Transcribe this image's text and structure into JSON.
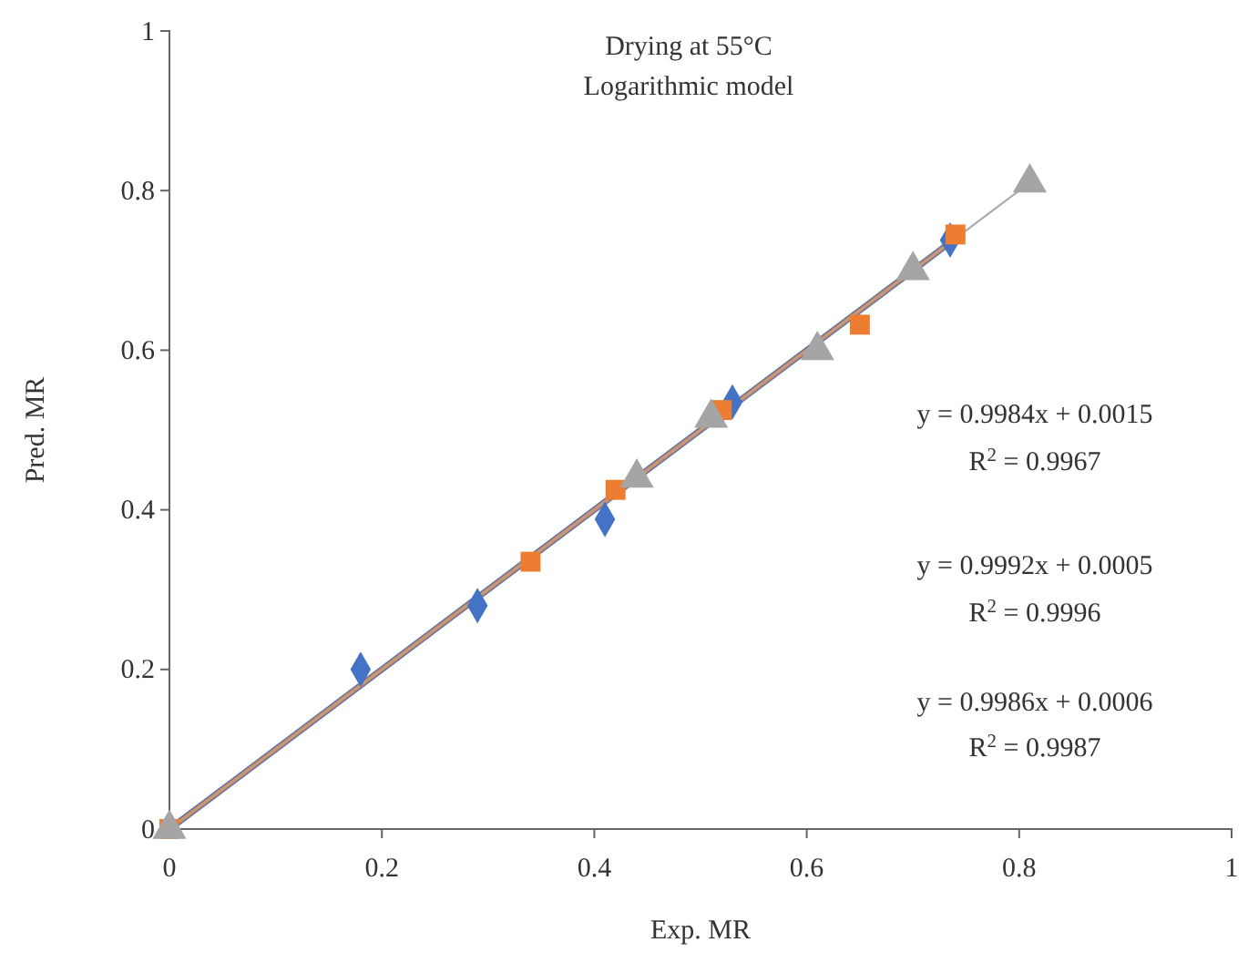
{
  "chart_data": {
    "type": "scatter",
    "title": "Drying at 55°C",
    "subtitle": "Logarithmic model",
    "xlabel": "Exp. MR",
    "ylabel": "Pred. MR",
    "xlim": [
      0,
      1
    ],
    "ylim": [
      0,
      1
    ],
    "xticks": [
      0,
      0.2,
      0.4,
      0.6,
      0.8,
      1
    ],
    "yticks": [
      0,
      0.2,
      0.4,
      0.6,
      0.8,
      1
    ],
    "grid": false,
    "series": [
      {
        "type": "line",
        "color": "#4472c4",
        "x": [
          0,
          0.735
        ],
        "values": [
          0,
          0.735
        ],
        "marker": "none"
      },
      {
        "type": "line",
        "color": "#ed7d31",
        "x": [
          0,
          0.74
        ],
        "values": [
          0,
          0.74
        ],
        "marker": "none"
      },
      {
        "type": "line",
        "color": "#a5a5a5",
        "x": [
          0,
          0.81
        ],
        "values": [
          0,
          0.81
        ],
        "marker": "none"
      },
      {
        "color": "#4472c4",
        "marker": "diamond",
        "x": [
          0.18,
          0.29,
          0.41,
          0.53,
          0.735
        ],
        "values": [
          0.2,
          0.28,
          0.388,
          0.535,
          0.738
        ]
      },
      {
        "color": "#ed7d31",
        "marker": "square",
        "x": [
          0,
          0.34,
          0.42,
          0.52,
          0.65,
          0.74
        ],
        "values": [
          0,
          0.335,
          0.425,
          0.525,
          0.632,
          0.745
        ]
      },
      {
        "color": "#a5a5a5",
        "marker": "triangle",
        "x": [
          0,
          0.44,
          0.51,
          0.61,
          0.7,
          0.81
        ],
        "values": [
          0,
          0.44,
          0.515,
          0.6,
          0.7,
          0.81
        ]
      }
    ],
    "annotations": [
      "y = 0.9984x + 0.0015",
      "R$^{2}$ = 0.9967",
      "y = 0.9992x + 0.0005",
      "R$^{2}$ = 0.9996",
      "y = 0.9986x + 0.0006",
      "R$^{2}$ = 0.9987"
    ]
  }
}
